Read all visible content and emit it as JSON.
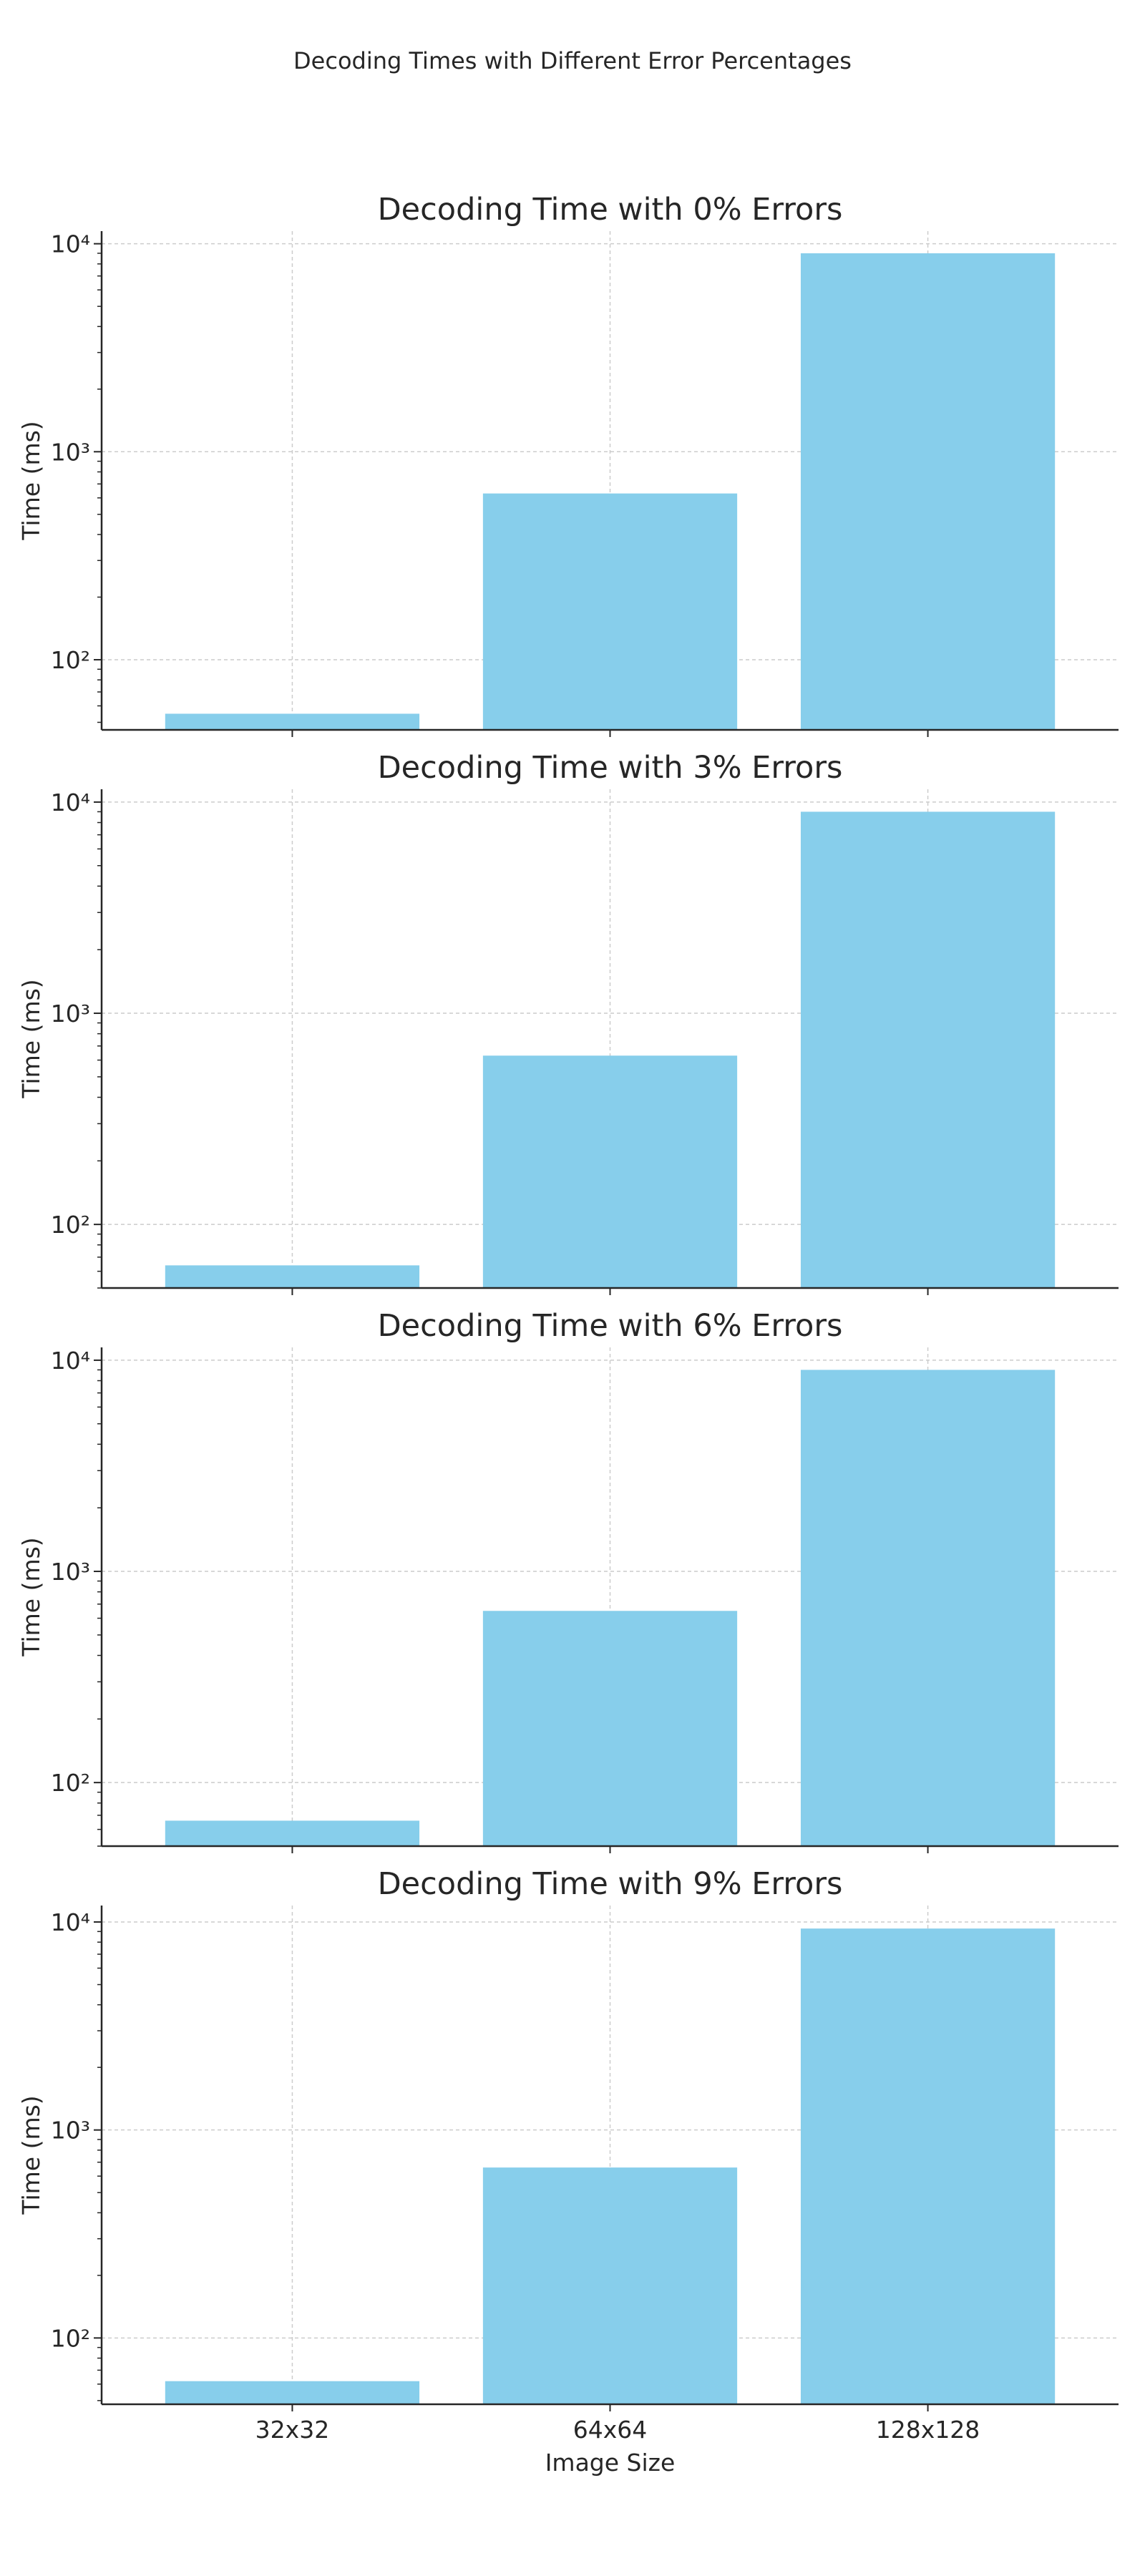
{
  "suptitle": "Decoding Times with Different Error Percentages",
  "chart_data": [
    {
      "type": "bar",
      "title": "Decoding Time with 0% Errors",
      "xlabel": "",
      "ylabel": "Time (ms)",
      "yscale": "log",
      "ylim": [
        46,
        11500
      ],
      "yticks": [
        100,
        1000,
        10000
      ],
      "grid": true,
      "categories": [
        "32x32",
        "64x64",
        "128x128"
      ],
      "values": [
        55,
        630,
        9000
      ],
      "bar_color": "#87CEEB"
    },
    {
      "type": "bar",
      "title": "Decoding Time with 3% Errors",
      "xlabel": "",
      "ylabel": "Time (ms)",
      "yscale": "log",
      "ylim": [
        50,
        11500
      ],
      "yticks": [
        100,
        1000,
        10000
      ],
      "grid": true,
      "categories": [
        "32x32",
        "64x64",
        "128x128"
      ],
      "values": [
        64,
        630,
        9000
      ],
      "bar_color": "#87CEEB"
    },
    {
      "type": "bar",
      "title": "Decoding Time with 6% Errors",
      "xlabel": "",
      "ylabel": "Time (ms)",
      "yscale": "log",
      "ylim": [
        50,
        11500
      ],
      "yticks": [
        100,
        1000,
        10000
      ],
      "grid": true,
      "categories": [
        "32x32",
        "64x64",
        "128x128"
      ],
      "values": [
        66,
        650,
        9000
      ],
      "bar_color": "#87CEEB"
    },
    {
      "type": "bar",
      "title": "Decoding Time with 9% Errors",
      "xlabel": "Image Size",
      "ylabel": "Time (ms)",
      "yscale": "log",
      "ylim": [
        48,
        12000
      ],
      "yticks": [
        100,
        1000,
        10000
      ],
      "grid": true,
      "categories": [
        "32x32",
        "64x64",
        "128x128"
      ],
      "values": [
        62,
        660,
        9300
      ],
      "bar_color": "#87CEEB"
    }
  ]
}
